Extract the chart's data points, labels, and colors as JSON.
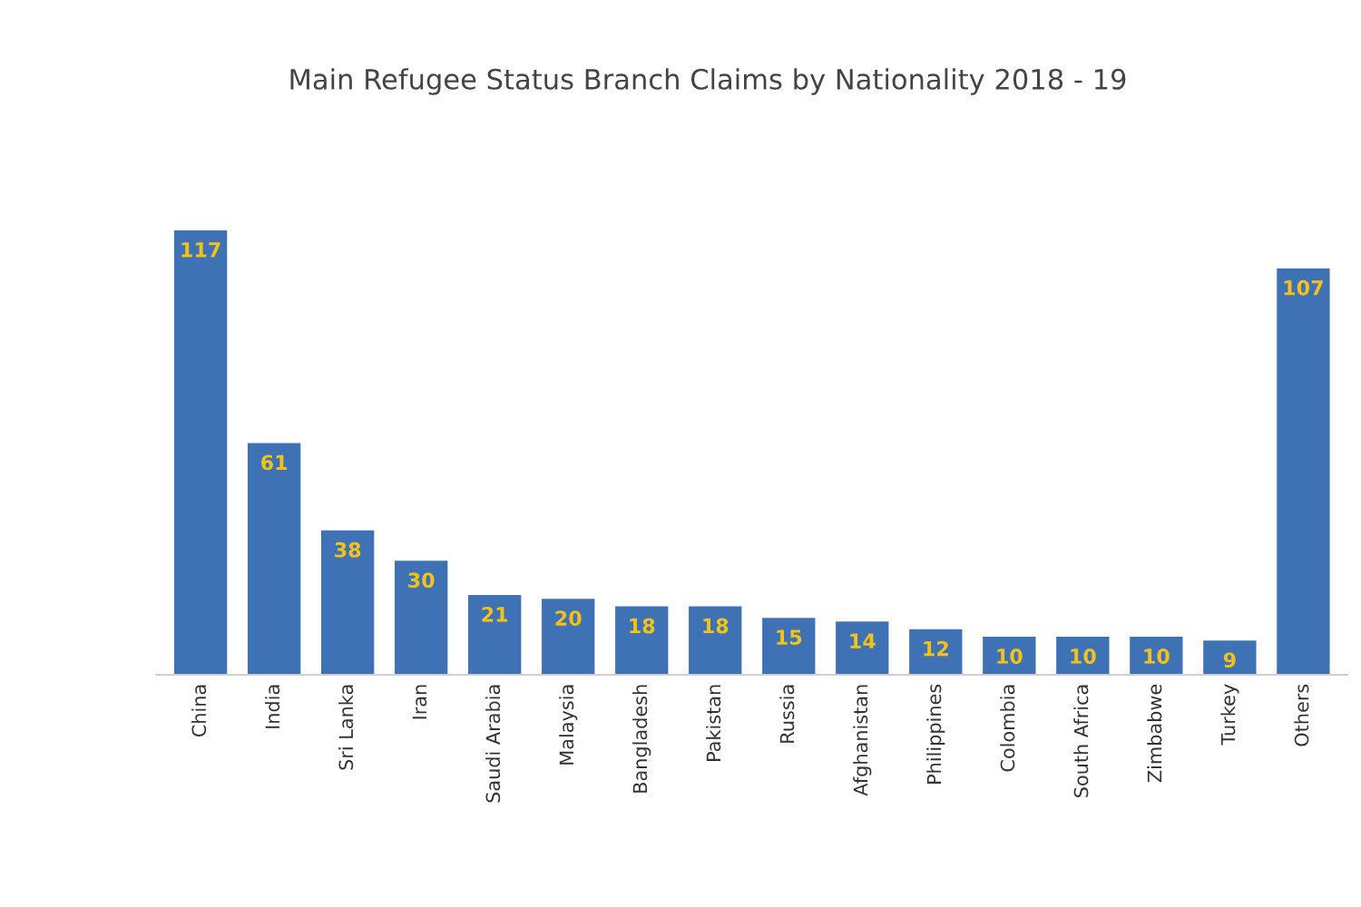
{
  "chart_data": {
    "type": "bar",
    "title": "Main Refugee Status Branch Claims by Nationality 2018 - 19",
    "categories": [
      "China",
      "India",
      "Sri Lanka",
      "Iran",
      "Saudi Arabia",
      "Malaysia",
      "Bangladesh",
      "Pakistan",
      "Russia",
      "Afghanistan",
      "Philippines",
      "Colombia",
      "South Africa",
      "Zimbabwe",
      "Turkey",
      "Others"
    ],
    "values": [
      117,
      61,
      38,
      30,
      21,
      20,
      18,
      18,
      15,
      14,
      12,
      10,
      10,
      10,
      9,
      107
    ],
    "color": "#3f72b5",
    "data_labels": true,
    "tick_labels": "x",
    "grid": false,
    "legend": false
  }
}
